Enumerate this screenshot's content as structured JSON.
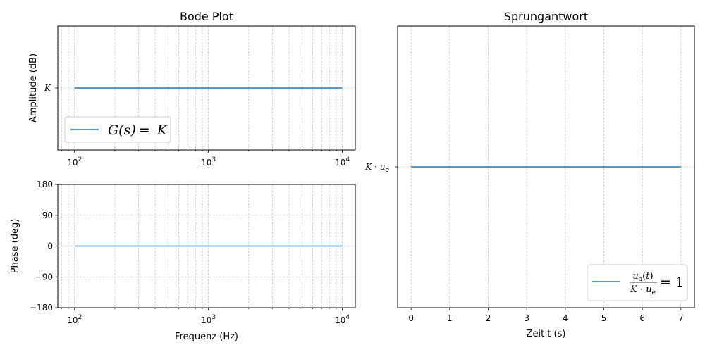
{
  "colors": {
    "series": "#1f77b4",
    "grid": "#b0b0b0"
  },
  "chart_data": [
    {
      "id": "amplitude",
      "type": "line",
      "title": "Bode Plot",
      "xlabel": "",
      "ylabel": "Amplitude (dB)",
      "x_scale": "log",
      "xlim": [
        75,
        12500
      ],
      "ylim": [
        0,
        2
      ],
      "x_ticks": [
        {
          "value": 100,
          "base": "10",
          "exp": "2"
        },
        {
          "value": 1000,
          "base": "10",
          "exp": "3"
        },
        {
          "value": 10000,
          "base": "10",
          "exp": "4"
        }
      ],
      "y_ticks": [
        {
          "value": 1,
          "label": "K"
        }
      ],
      "grid": true,
      "legend_position": "lower-left",
      "series": [
        {
          "name": "G(s) = K",
          "x": [
            100,
            10000
          ],
          "y": [
            1,
            1
          ]
        }
      ],
      "legend": {
        "lhs": "G(s)",
        "rhs": "= K"
      }
    },
    {
      "id": "phase",
      "type": "line",
      "title": "",
      "xlabel": "Frequenz (Hz)",
      "ylabel": "Phase (deg)",
      "x_scale": "log",
      "xlim": [
        75,
        12500
      ],
      "ylim": [
        -180,
        180
      ],
      "x_ticks": [
        {
          "value": 100,
          "base": "10",
          "exp": "2"
        },
        {
          "value": 1000,
          "base": "10",
          "exp": "3"
        },
        {
          "value": 10000,
          "base": "10",
          "exp": "4"
        }
      ],
      "y_ticks": [
        {
          "value": 180,
          "label": "180"
        },
        {
          "value": 90,
          "label": "90"
        },
        {
          "value": 0,
          "label": "0"
        },
        {
          "value": -90,
          "label": "−90"
        },
        {
          "value": -180,
          "label": "−180"
        }
      ],
      "grid": true,
      "series": [
        {
          "x": [
            100,
            10000
          ],
          "y": [
            0,
            0
          ]
        }
      ]
    },
    {
      "id": "step",
      "type": "line",
      "title": "Sprungantwort",
      "xlabel": "Zeit t (s)",
      "ylabel": "",
      "x_scale": "linear",
      "xlim": [
        -0.35,
        7.35
      ],
      "ylim": [
        0,
        2
      ],
      "x_ticks": [
        {
          "value": 0,
          "label": "0"
        },
        {
          "value": 1,
          "label": "1"
        },
        {
          "value": 2,
          "label": "2"
        },
        {
          "value": 3,
          "label": "3"
        },
        {
          "value": 4,
          "label": "4"
        },
        {
          "value": 5,
          "label": "5"
        },
        {
          "value": 6,
          "label": "6"
        },
        {
          "value": 7,
          "label": "7"
        }
      ],
      "y_ticks": [
        {
          "value": 1,
          "label": "K · u_e"
        }
      ],
      "grid": true,
      "legend_position": "lower-right",
      "series": [
        {
          "name": "u_a(t) / (K · u_e) = 1",
          "x": [
            0,
            7
          ],
          "y": [
            1,
            1
          ]
        }
      ],
      "legend": {
        "num": "u_a(t)",
        "den": "K · u_e",
        "rhs": "= 1"
      }
    }
  ]
}
